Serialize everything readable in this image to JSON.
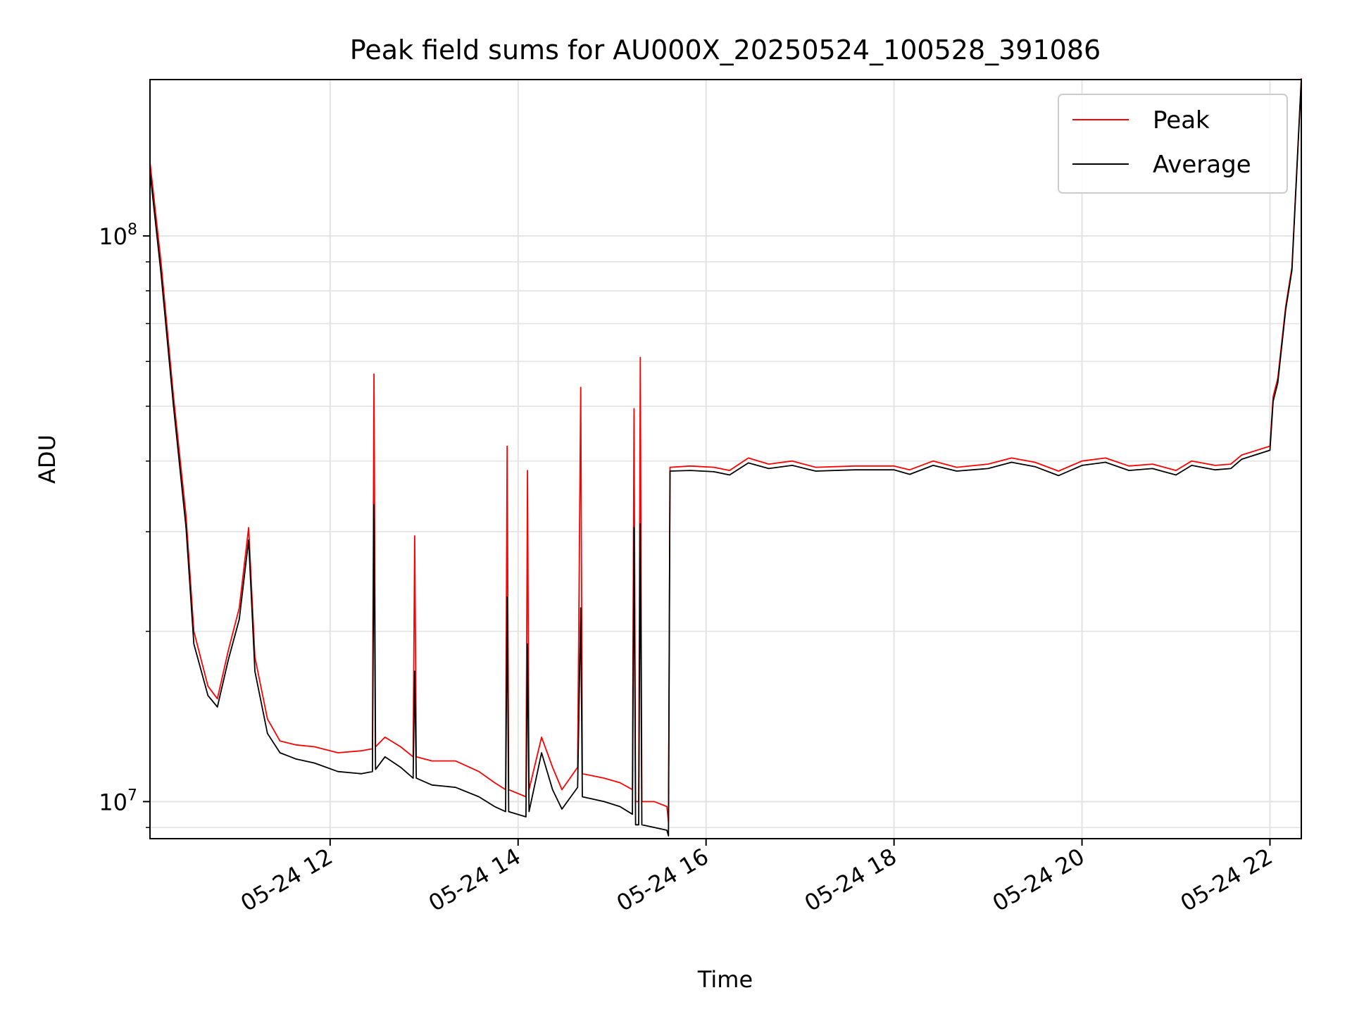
{
  "chart_data": {
    "type": "line",
    "title": "Peak field sums for AU000X_20250524_100528_391086",
    "xlabel": "Time",
    "ylabel": "ADU",
    "y_scale": "log",
    "grid": true,
    "legend_placement": "top-right",
    "xlim": [
      "05-24 10:05",
      "05-24 22:20"
    ],
    "ylim": [
      8600000,
      189000000
    ],
    "x_ticks": [
      {
        "label": "05-24 12",
        "value": "05-24 12:00"
      },
      {
        "label": "05-24 14",
        "value": "05-24 14:00"
      },
      {
        "label": "05-24 16",
        "value": "05-24 16:00"
      },
      {
        "label": "05-24 18",
        "value": "05-24 18:00"
      },
      {
        "label": "05-24 20",
        "value": "05-24 20:00"
      },
      {
        "label": "05-24 22",
        "value": "05-24 22:00"
      }
    ],
    "y_ticks": [
      {
        "base": "10",
        "exp": "7",
        "value": 10000000
      },
      {
        "base": "10",
        "exp": "8",
        "value": 100000000
      }
    ],
    "series": [
      {
        "name": "Peak",
        "color": "#ff0000",
        "points": [
          [
            "05-24 10:05",
            135000000
          ],
          [
            "05-24 10:12",
            90000000
          ],
          [
            "05-24 10:20",
            52000000
          ],
          [
            "05-24 10:28",
            32000000
          ],
          [
            "05-24 10:33",
            20000000
          ],
          [
            "05-24 10:42",
            16000000
          ],
          [
            "05-24 10:48",
            15200000
          ],
          [
            "05-24 10:55",
            18500000
          ],
          [
            "05-24 11:02",
            22000000
          ],
          [
            "05-24 11:08",
            30500000
          ],
          [
            "05-24 11:12",
            18000000
          ],
          [
            "05-24 11:20",
            14000000
          ],
          [
            "05-24 11:28",
            12800000
          ],
          [
            "05-24 11:38",
            12600000
          ],
          [
            "05-24 11:50",
            12500000
          ],
          [
            "05-24 12:05",
            12200000
          ],
          [
            "05-24 12:20",
            12300000
          ],
          [
            "05-24 12:27",
            12400000
          ],
          [
            "05-24 12:28",
            57000000
          ],
          [
            "05-24 12:29",
            12500000
          ],
          [
            "05-24 12:35",
            13000000
          ],
          [
            "05-24 12:45",
            12500000
          ],
          [
            "05-24 12:53",
            12000000
          ],
          [
            "05-24 12:54",
            29500000
          ],
          [
            "05-24 12:55",
            12000000
          ],
          [
            "05-24 13:05",
            11800000
          ],
          [
            "05-24 13:20",
            11800000
          ],
          [
            "05-24 13:35",
            11300000
          ],
          [
            "05-24 13:45",
            10800000
          ],
          [
            "05-24 13:52",
            10500000
          ],
          [
            "05-24 13:53",
            42500000
          ],
          [
            "05-24 13:54",
            10500000
          ],
          [
            "05-24 14:05",
            10200000
          ],
          [
            "05-24 14:06",
            38500000
          ],
          [
            "05-24 14:07",
            10500000
          ],
          [
            "05-24 14:15",
            13000000
          ],
          [
            "05-24 14:22",
            11500000
          ],
          [
            "05-24 14:28",
            10500000
          ],
          [
            "05-24 14:38",
            11500000
          ],
          [
            "05-24 14:40",
            54000000
          ],
          [
            "05-24 14:41",
            11200000
          ],
          [
            "05-24 14:55",
            11000000
          ],
          [
            "05-24 15:05",
            10800000
          ],
          [
            "05-24 15:13",
            10500000
          ],
          [
            "05-24 15:14",
            49500000
          ],
          [
            "05-24 15:15",
            10000000
          ],
          [
            "05-24 15:17",
            10000000
          ],
          [
            "05-24 15:18",
            61000000
          ],
          [
            "05-24 15:19",
            10000000
          ],
          [
            "05-24 15:27",
            10000000
          ],
          [
            "05-24 15:35",
            9800000
          ],
          [
            "05-24 15:36",
            9200000
          ],
          [
            "05-24 15:37",
            39000000
          ],
          [
            "05-24 15:50",
            39200000
          ],
          [
            "05-24 16:05",
            39000000
          ],
          [
            "05-24 16:15",
            38500000
          ],
          [
            "05-24 16:27",
            40500000
          ],
          [
            "05-24 16:40",
            39500000
          ],
          [
            "05-24 16:55",
            40000000
          ],
          [
            "05-24 17:10",
            39000000
          ],
          [
            "05-24 17:35",
            39200000
          ],
          [
            "05-24 18:00",
            39200000
          ],
          [
            "05-24 18:10",
            38600000
          ],
          [
            "05-24 18:25",
            40000000
          ],
          [
            "05-24 18:40",
            39000000
          ],
          [
            "05-24 19:00",
            39500000
          ],
          [
            "05-24 19:15",
            40500000
          ],
          [
            "05-24 19:30",
            39800000
          ],
          [
            "05-24 19:45",
            38400000
          ],
          [
            "05-24 20:00",
            40000000
          ],
          [
            "05-24 20:15",
            40500000
          ],
          [
            "05-24 20:30",
            39200000
          ],
          [
            "05-24 20:45",
            39500000
          ],
          [
            "05-24 21:00",
            38500000
          ],
          [
            "05-24 21:10",
            40000000
          ],
          [
            "05-24 21:25",
            39300000
          ],
          [
            "05-24 21:35",
            39500000
          ],
          [
            "05-24 21:42",
            41000000
          ],
          [
            "05-24 22:00",
            42500000
          ],
          [
            "05-24 22:02",
            52000000
          ],
          [
            "05-24 22:05",
            56000000
          ],
          [
            "05-24 22:10",
            75000000
          ],
          [
            "05-24 22:14",
            88000000
          ],
          [
            "05-24 22:20",
            190000000
          ]
        ]
      },
      {
        "name": "Average",
        "color": "#000000",
        "points": [
          [
            "05-24 10:05",
            130000000
          ],
          [
            "05-24 10:12",
            86000000
          ],
          [
            "05-24 10:20",
            50000000
          ],
          [
            "05-24 10:28",
            30500000
          ],
          [
            "05-24 10:33",
            19000000
          ],
          [
            "05-24 10:42",
            15400000
          ],
          [
            "05-24 10:48",
            14700000
          ],
          [
            "05-24 10:55",
            17800000
          ],
          [
            "05-24 11:02",
            21000000
          ],
          [
            "05-24 11:08",
            29000000
          ],
          [
            "05-24 11:12",
            17000000
          ],
          [
            "05-24 11:20",
            13200000
          ],
          [
            "05-24 11:28",
            12200000
          ],
          [
            "05-24 11:38",
            11900000
          ],
          [
            "05-24 11:50",
            11700000
          ],
          [
            "05-24 12:05",
            11300000
          ],
          [
            "05-24 12:20",
            11200000
          ],
          [
            "05-24 12:27",
            11300000
          ],
          [
            "05-24 12:28",
            33500000
          ],
          [
            "05-24 12:29",
            11400000
          ],
          [
            "05-24 12:35",
            12000000
          ],
          [
            "05-24 12:45",
            11500000
          ],
          [
            "05-24 12:53",
            11000000
          ],
          [
            "05-24 12:54",
            17000000
          ],
          [
            "05-24 12:55",
            11000000
          ],
          [
            "05-24 13:05",
            10700000
          ],
          [
            "05-24 13:20",
            10600000
          ],
          [
            "05-24 13:35",
            10200000
          ],
          [
            "05-24 13:45",
            9800000
          ],
          [
            "05-24 13:52",
            9600000
          ],
          [
            "05-24 13:53",
            23000000
          ],
          [
            "05-24 13:54",
            9600000
          ],
          [
            "05-24 14:05",
            9400000
          ],
          [
            "05-24 14:06",
            19000000
          ],
          [
            "05-24 14:07",
            9600000
          ],
          [
            "05-24 14:15",
            12200000
          ],
          [
            "05-24 14:22",
            10500000
          ],
          [
            "05-24 14:28",
            9700000
          ],
          [
            "05-24 14:38",
            10600000
          ],
          [
            "05-24 14:40",
            22000000
          ],
          [
            "05-24 14:41",
            10200000
          ],
          [
            "05-24 14:55",
            10000000
          ],
          [
            "05-24 15:05",
            9800000
          ],
          [
            "05-24 15:13",
            9500000
          ],
          [
            "05-24 15:14",
            30500000
          ],
          [
            "05-24 15:15",
            9100000
          ],
          [
            "05-24 15:17",
            9100000
          ],
          [
            "05-24 15:18",
            31000000
          ],
          [
            "05-24 15:19",
            9100000
          ],
          [
            "05-24 15:27",
            9000000
          ],
          [
            "05-24 15:35",
            8900000
          ],
          [
            "05-24 15:36",
            8700000
          ],
          [
            "05-24 15:37",
            38400000
          ],
          [
            "05-24 15:50",
            38500000
          ],
          [
            "05-24 16:05",
            38300000
          ],
          [
            "05-24 16:15",
            37800000
          ],
          [
            "05-24 16:27",
            39700000
          ],
          [
            "05-24 16:40",
            38800000
          ],
          [
            "05-24 16:55",
            39300000
          ],
          [
            "05-24 17:10",
            38400000
          ],
          [
            "05-24 17:35",
            38600000
          ],
          [
            "05-24 18:00",
            38600000
          ],
          [
            "05-24 18:10",
            37900000
          ],
          [
            "05-24 18:25",
            39300000
          ],
          [
            "05-24 18:40",
            38400000
          ],
          [
            "05-24 19:00",
            38800000
          ],
          [
            "05-24 19:15",
            39800000
          ],
          [
            "05-24 19:30",
            39100000
          ],
          [
            "05-24 19:45",
            37700000
          ],
          [
            "05-24 20:00",
            39300000
          ],
          [
            "05-24 20:15",
            39800000
          ],
          [
            "05-24 20:30",
            38500000
          ],
          [
            "05-24 20:45",
            38800000
          ],
          [
            "05-24 21:00",
            37800000
          ],
          [
            "05-24 21:10",
            39300000
          ],
          [
            "05-24 21:25",
            38600000
          ],
          [
            "05-24 21:35",
            38800000
          ],
          [
            "05-24 21:42",
            40300000
          ],
          [
            "05-24 22:00",
            41800000
          ],
          [
            "05-24 22:02",
            51000000
          ],
          [
            "05-24 22:05",
            55000000
          ],
          [
            "05-24 22:10",
            74000000
          ],
          [
            "05-24 22:14",
            87000000
          ],
          [
            "05-24 22:20",
            189000000
          ]
        ]
      }
    ]
  }
}
